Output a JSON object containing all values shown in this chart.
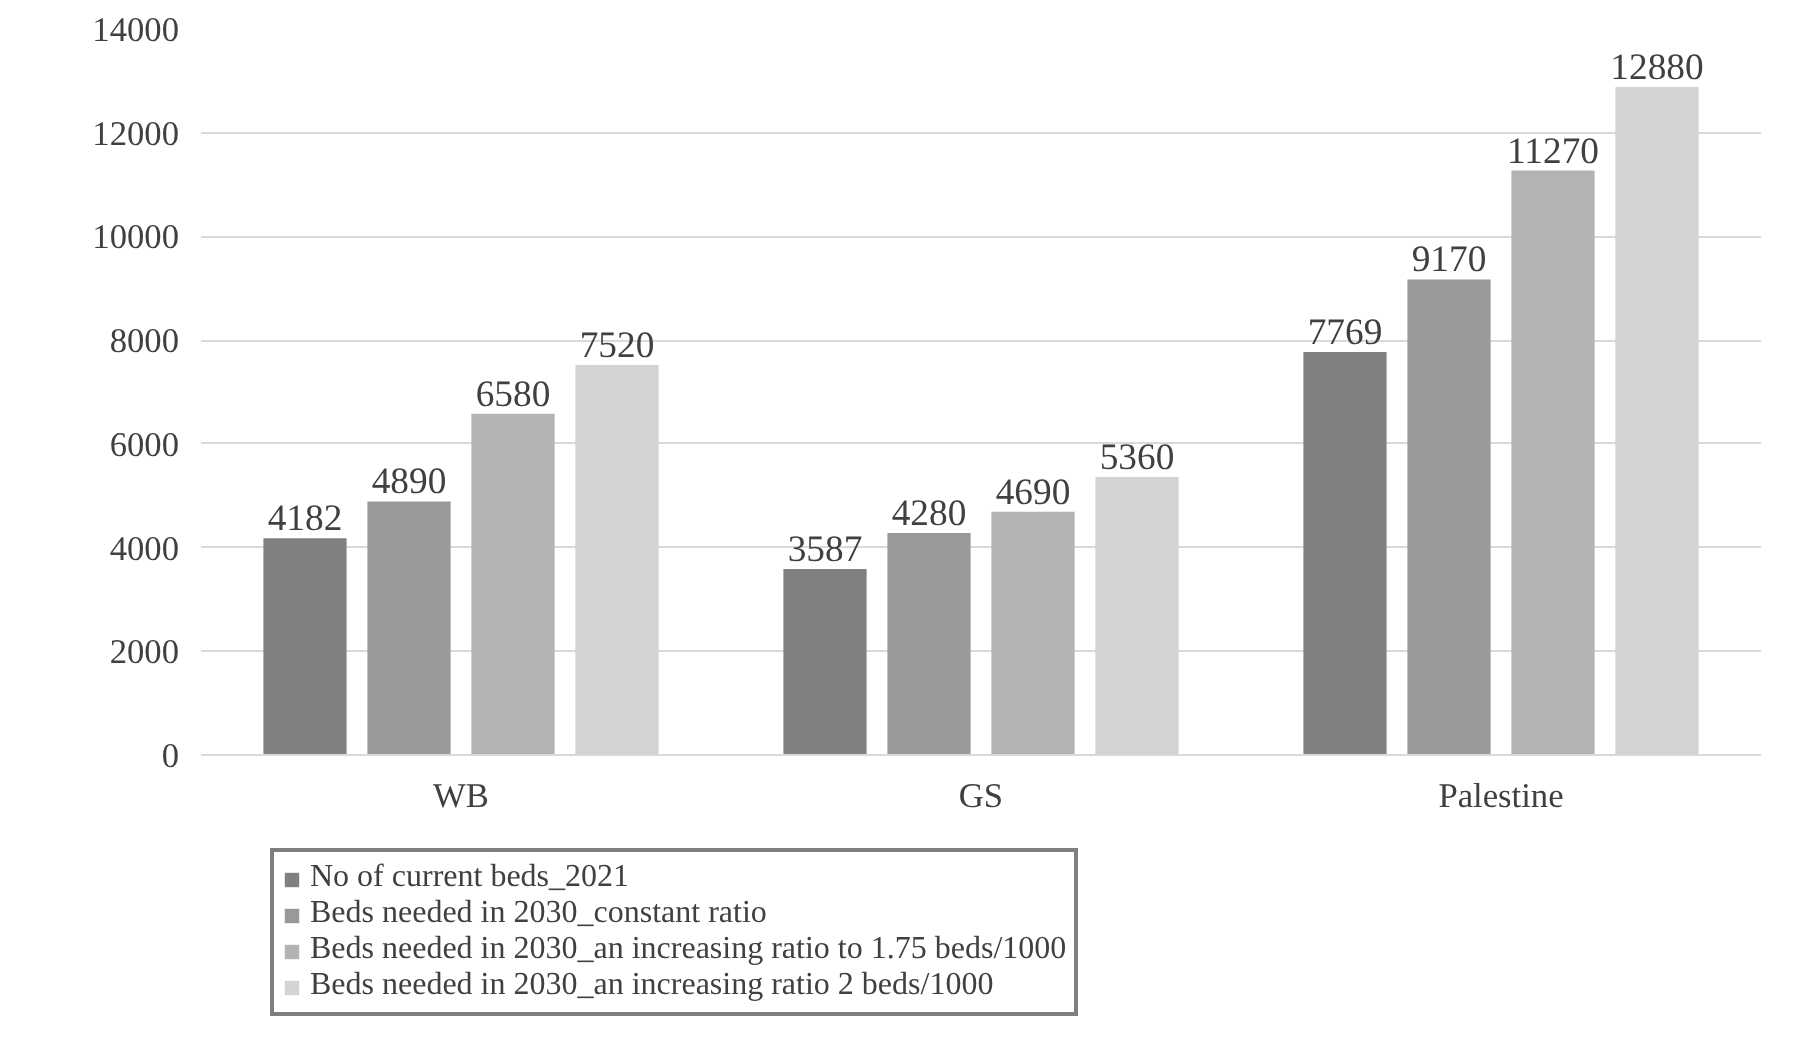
{
  "chart_data": {
    "type": "bar",
    "categories": [
      "WB",
      "GS",
      "Palestine"
    ],
    "series": [
      {
        "name": "No of current beds_2021",
        "color": "#808080",
        "values": [
          4182,
          3587,
          7769
        ]
      },
      {
        "name": "Beds needed in 2030_constant ratio",
        "color": "#999999",
        "values": [
          4890,
          4280,
          9170
        ]
      },
      {
        "name": "Beds needed in 2030_an increasing ratio to 1.75 beds/1000",
        "color": "#b3b3b3",
        "values": [
          6580,
          4690,
          11270
        ]
      },
      {
        "name": "Beds needed in 2030_an increasing ratio 2 beds/1000",
        "color": "#d3d3d3",
        "values": [
          7520,
          5360,
          12880
        ]
      }
    ],
    "ylim": [
      0,
      14000
    ],
    "yticks": [
      0,
      2000,
      4000,
      6000,
      8000,
      10000,
      12000,
      14000
    ],
    "grid": "y",
    "legend": "bottom",
    "data_labels": true
  }
}
